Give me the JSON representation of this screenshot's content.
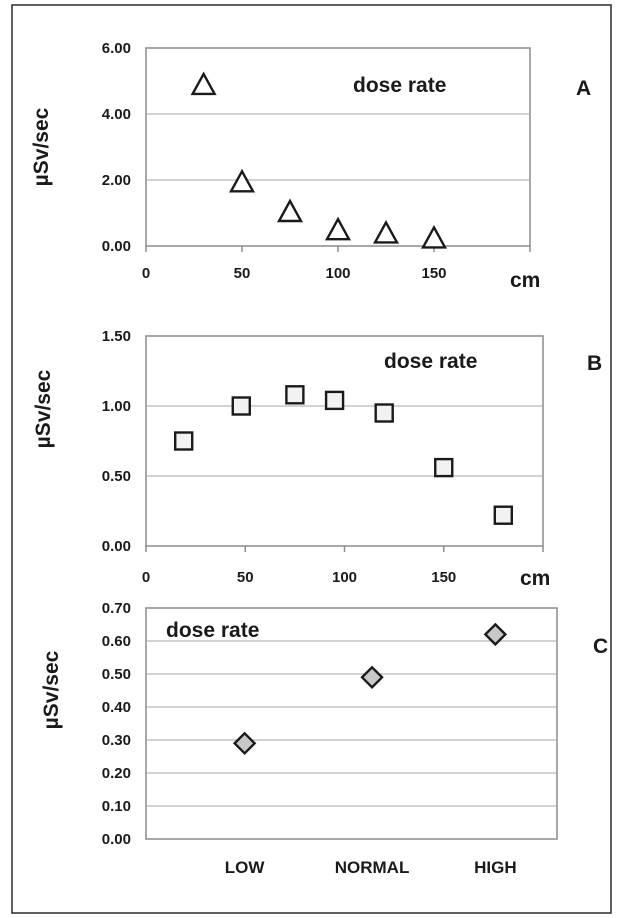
{
  "colors": {
    "frame": "#2b2b2b",
    "grid": "#a6a6a6",
    "axis": "#8c8c8c",
    "marker_stroke": "#1a1a1a",
    "triangle_fill": "#ffffff",
    "square_fill": "#f2f2f2",
    "diamond_fill": "#c8c8c8"
  },
  "chart_data": [
    {
      "panel": "A",
      "type": "scatter",
      "marker": "triangle",
      "series_label": "dose rate",
      "ylabel": "µSv/sec",
      "xlabel": "cm",
      "xlim": [
        0,
        200
      ],
      "ylim": [
        0,
        6
      ],
      "xticks": [
        0,
        50,
        100,
        150
      ],
      "yticks": [
        0,
        2,
        4,
        6
      ],
      "xtick_labels": [
        "0",
        "50",
        "100",
        "150"
      ],
      "ytick_labels": [
        "0.00",
        "2.00",
        "4.00",
        "6.00"
      ],
      "grid": true,
      "x": [
        30,
        50,
        75,
        100,
        125,
        150
      ],
      "y": [
        4.85,
        1.9,
        1.0,
        0.45,
        0.35,
        0.2
      ]
    },
    {
      "panel": "B",
      "type": "scatter",
      "marker": "square",
      "series_label": "dose rate",
      "ylabel": "µSv/sec",
      "xlabel": "cm",
      "xlim": [
        0,
        200
      ],
      "ylim": [
        0,
        1.5
      ],
      "xticks": [
        0,
        50,
        100,
        150
      ],
      "yticks": [
        0,
        0.5,
        1.0,
        1.5
      ],
      "xtick_labels": [
        "0",
        "50",
        "100",
        "150"
      ],
      "ytick_labels": [
        "0.00",
        "0.50",
        "1.00",
        "1.50"
      ],
      "grid": true,
      "x": [
        19,
        48,
        75,
        95,
        120,
        150,
        180
      ],
      "y": [
        0.75,
        1.0,
        1.08,
        1.04,
        0.95,
        0.56,
        0.22
      ]
    },
    {
      "panel": "C",
      "type": "scatter",
      "marker": "diamond",
      "series_label": "dose rate",
      "ylabel": "µSv/sec",
      "categories": [
        "LOW",
        "NORMAL",
        "HIGH"
      ],
      "ylim": [
        0,
        0.7
      ],
      "yticks": [
        0,
        0.1,
        0.2,
        0.3,
        0.4,
        0.5,
        0.6,
        0.7
      ],
      "ytick_labels": [
        "0.00",
        "0.10",
        "0.20",
        "0.30",
        "0.40",
        "0.50",
        "0.60",
        "0.70"
      ],
      "grid": true,
      "values": [
        0.29,
        0.49,
        0.62
      ]
    }
  ]
}
